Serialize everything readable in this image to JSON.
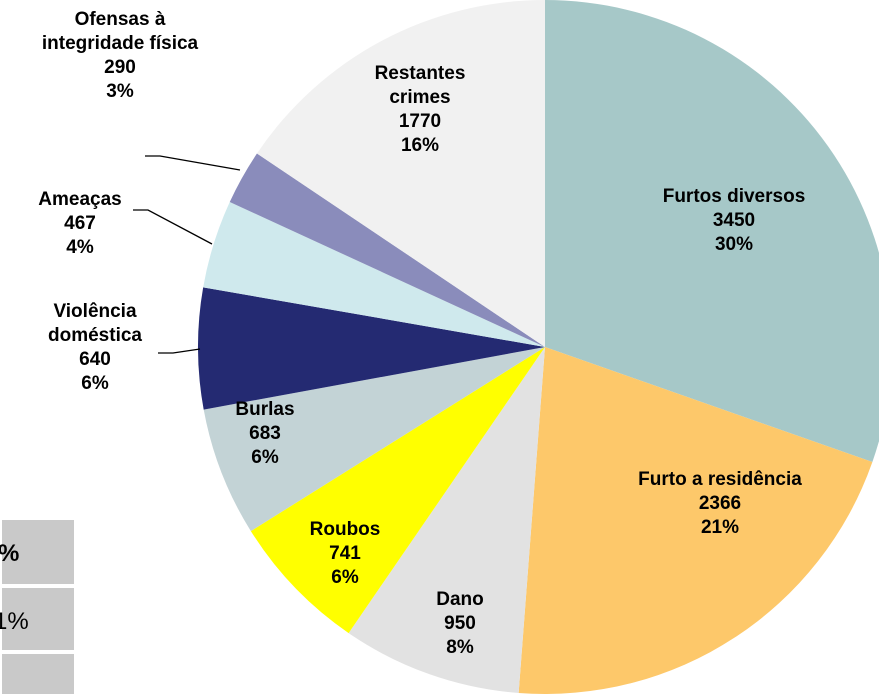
{
  "chart_data": {
    "type": "pie",
    "categories": [
      "Furtos diversos",
      "Furto a residência",
      "Dano",
      "Roubos",
      "Burlas",
      "Violência doméstica",
      "Ameaças",
      "Ofensas à integridade física",
      "Restantes crimes"
    ],
    "values": [
      3450,
      2366,
      950,
      741,
      683,
      640,
      467,
      290,
      1770
    ],
    "percent_labels": [
      "30%",
      "21%",
      "8%",
      "6%",
      "6%",
      "6%",
      "4%",
      "3%",
      "16%"
    ],
    "colors": [
      "#a6c8c8",
      "#fdc86a",
      "#e2e2e2",
      "#ffff00",
      "#c3d3d6",
      "#242a72",
      "#cfe9ed",
      "#8a8cbb",
      "#f1f1f1"
    ]
  },
  "table_fragment": [
    "%",
    "1%"
  ]
}
